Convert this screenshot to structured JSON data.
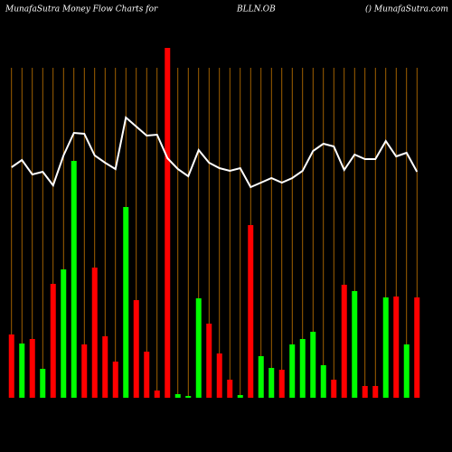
{
  "chart_data": {
    "type": "bar",
    "title": "MunafaSutra  Money Flow  Charts for",
    "subtitle": "BLLN.OB",
    "source": "() MunafaSutra.com",
    "categories": [
      null,
      null,
      null,
      null,
      null,
      null,
      null,
      null,
      null,
      null,
      null,
      null,
      null,
      null,
      null,
      null,
      null,
      null,
      null,
      null,
      null,
      null,
      null,
      null,
      null,
      null,
      null,
      null,
      null,
      null,
      null,
      null,
      null,
      null,
      null,
      null,
      null,
      null,
      null,
      null
    ],
    "values": [
      70,
      60,
      65,
      32,
      126,
      142,
      262,
      59,
      144,
      68,
      40,
      211,
      108,
      51,
      8,
      387,
      4,
      2,
      110,
      82,
      49,
      20,
      3,
      191,
      46,
      33,
      31,
      59,
      65,
      73,
      36,
      20,
      125,
      118,
      13,
      13,
      111,
      112,
      59,
      111
    ],
    "colors": [
      "#ff0000",
      "#00ff00",
      "#ff0000",
      "#00ff00",
      "#ff0000",
      "#00ff00",
      "#00ff00",
      "#ff0000",
      "#ff0000",
      "#ff0000",
      "#ff0000",
      "#00ff00",
      "#ff0000",
      "#ff0000",
      "#ff0000",
      "#ff0000",
      "#00ff00",
      "#00ff00",
      "#00ff00",
      "#ff0000",
      "#ff0000",
      "#ff0000",
      "#00ff00",
      "#ff0000",
      "#00ff00",
      "#00ff00",
      "#ff0000",
      "#00ff00",
      "#00ff00",
      "#00ff00",
      "#00ff00",
      "#ff0000",
      "#ff0000",
      "#00ff00",
      "#ff0000",
      "#ff0000",
      "#00ff00",
      "#ff0000",
      "#00ff00",
      "#ff0000"
    ],
    "line": {
      "color": "#ffffff",
      "values": [
        255,
        263,
        247,
        250,
        235,
        268,
        293,
        292,
        268,
        260,
        253,
        310,
        300,
        290,
        291,
        265,
        253,
        245,
        274,
        260,
        254,
        251,
        254,
        233,
        238,
        243,
        238,
        243,
        251,
        273,
        281,
        278,
        252,
        269,
        264,
        264,
        284,
        267,
        271,
        250
      ]
    },
    "ylim": [
      0,
      390
    ],
    "grid": true,
    "grid_color": "#c87800"
  }
}
